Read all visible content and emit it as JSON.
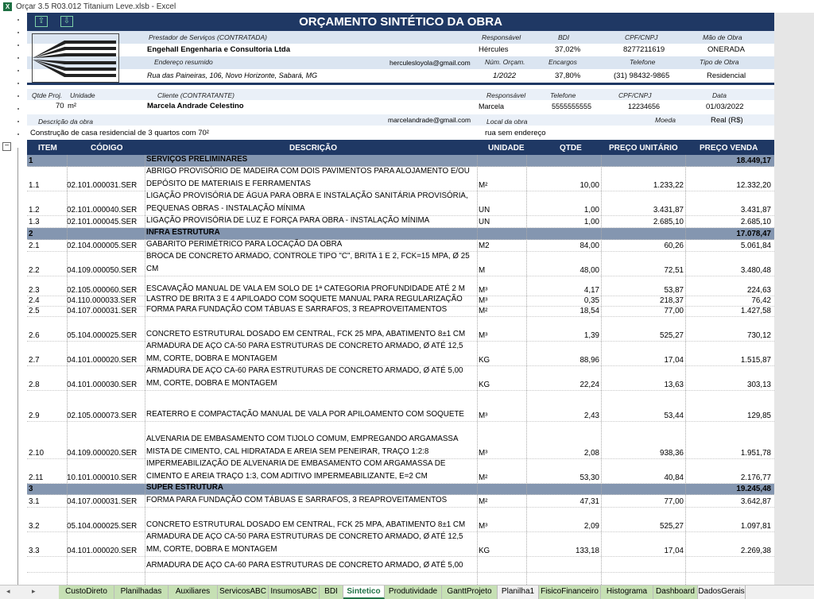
{
  "window": {
    "title": "Orçar 3.5 R03.012 Titanium Leve.xlsb - Excel"
  },
  "header": {
    "title": "ORÇAMENTO SINTÉTICO DA OBRA",
    "prestador_label": "Prestador de Serviços (CONTRATADA)",
    "prestador": "Engehall Engenharia e Consultoria Ltda",
    "responsavel_label": "Responsável",
    "responsavel": "Hércules",
    "bdi_label": "BDI",
    "bdi": "37,02%",
    "cpf_label": "CPF/CNPJ",
    "cpf": "8277211619",
    "mao_label": "Mão de Obra",
    "mao": "ONERADA",
    "endereco_label": "Endereço resumido",
    "email": "herculesloyola@gmail.com",
    "num_label": "Núm. Orçam.",
    "num": "1/2022",
    "encargos_label": "Encargos",
    "encargos": "37,80%",
    "telefone_label": "Telefone",
    "telefone": "(31) 98432-9865",
    "tipo_label": "Tipo de Obra",
    "tipo": "Residencial",
    "endereco": "Rua das Paineiras, 106, Novo Horizonte, Sabará, MG"
  },
  "client": {
    "qtde_label": "Qtde Proj.",
    "qtde": "70",
    "unidade_label": "Unidade",
    "unidade": "m²",
    "cliente_label": "Cliente (CONTRATANTE)",
    "cliente": "Marcela Andrade Celestino",
    "resp_label": "Responsável",
    "resp": "Marcela",
    "tel_label": "Telefone",
    "tel": "5555555555",
    "cpf_label": "CPF/CNPJ",
    "cpf": "12234656",
    "data_label": "Data",
    "data": "01/03/2022",
    "descricao_label": "Descrição da obra",
    "email": "marcelandrade@gmail.com",
    "local_label": "Local da obra",
    "moeda_label": "Moeda",
    "moeda": "Real (R$)",
    "descricao": "Construção de casa residencial de 3 quartos com 70²",
    "local": "rua sem endereço"
  },
  "table": {
    "headers": {
      "item": "ITEM",
      "codigo": "CÓDIGO",
      "descricao": "DESCRIÇÃO",
      "unidade": "UNIDADE",
      "qtde": "QTDE",
      "preco_unit": "PREÇO UNITÁRIO",
      "preco_venda": "PREÇO VENDA"
    },
    "rows": [
      {
        "item": "1",
        "codigo": "",
        "desc": "SERVIÇOS PRELIMINARES",
        "un": "",
        "qtde": "",
        "unit": "",
        "venda": "18.449,17",
        "group": true,
        "h": 15
      },
      {
        "item": "1.1",
        "codigo": "02.101.000031.SER",
        "desc": "ABRIGO PROVISÓRIO DE MADEIRA COM DOIS PAVIMENTOS PARA ALOJAMENTO E/OU DEPÓSITO DE MATERIAIS E FERRAMENTAS",
        "un": "M²",
        "qtde": "10,00",
        "unit": "1.233,22",
        "venda": "12.332,20",
        "h": 31
      },
      {
        "item": "1.2",
        "codigo": "02.101.000040.SER",
        "desc": "LIGAÇÃO PROVISÓRIA DE ÁGUA PARA OBRA E INSTALAÇÃO SANITÁRIA PROVISÓRIA, PEQUENAS OBRAS - INSTALAÇÃO MÍNIMA",
        "un": "UN",
        "qtde": "1,00",
        "unit": "3.431,87",
        "venda": "3.431,87",
        "h": 31
      },
      {
        "item": "1.3",
        "codigo": "02.101.000045.SER",
        "desc": "LIGAÇÃO PROVISÓRIA DE LUZ E FORÇA PARA OBRA - INSTALAÇÃO MÍNIMA",
        "un": "UN",
        "qtde": "1,00",
        "unit": "2.685,10",
        "venda": "2.685,10",
        "h": 15
      },
      {
        "item": "2",
        "codigo": "",
        "desc": "INFRA ESTRUTURA",
        "un": "",
        "qtde": "",
        "unit": "",
        "venda": "17.078,47",
        "group": true,
        "h": 15
      },
      {
        "item": "2.1",
        "codigo": "02.104.000005.SER",
        "desc": "GABARITO PERIMÉTRICO PARA LOCAÇÃO DA OBRA",
        "un": "M2",
        "qtde": "84,00",
        "unit": "60,26",
        "venda": "5.061,84",
        "h": 15
      },
      {
        "item": "2.2",
        "codigo": "04.109.000050.SER",
        "desc": "BROCA DE CONCRETO ARMADO, CONTROLE TIPO \"C\", BRITA 1 E 2, FCK=15 MPA, Ø 25 CM",
        "un": "M",
        "qtde": "48,00",
        "unit": "72,51",
        "venda": "3.480,48",
        "h": 31
      },
      {
        "item": "2.3",
        "codigo": "02.105.000060.SER",
        "desc": "ESCAVAÇÃO MANUAL DE VALA EM SOLO DE 1ª CATEGORIA PROFUNDIDADE ATÉ 2 M",
        "un": "M³",
        "qtde": "4,17",
        "unit": "53,87",
        "venda": "224,63",
        "h": 25
      },
      {
        "item": "2.4",
        "codigo": "04.110.000033.SER",
        "desc": "LASTRO DE BRITA 3 E 4 APILOADO COM SOQUETE MANUAL PARA REGULARIZAÇÃO",
        "un": "M³",
        "qtde": "0,35",
        "unit": "218,37",
        "venda": "76,42",
        "h": 13
      },
      {
        "item": "2.5",
        "codigo": "04.107.000031.SER",
        "desc": "FORMA PARA FUNDAÇÃO COM TÁBUAS E SARRAFOS, 3 REAPROVEITAMENTOS",
        "un": "M²",
        "qtde": "18,54",
        "unit": "77,00",
        "venda": "1.427,58",
        "h": 13
      },
      {
        "item": "2.6",
        "codigo": "05.104.000025.SER",
        "desc": "CONCRETO ESTRUTURAL DOSADO EM CENTRAL, FCK 25 MPA, ABATIMENTO 8±1 CM",
        "un": "M³",
        "qtde": "1,39",
        "unit": "525,27",
        "venda": "730,12",
        "h": 31
      },
      {
        "item": "2.7",
        "codigo": "04.101.000020.SER",
        "desc": "ARMADURA DE AÇO CA-50 PARA ESTRUTURAS DE CONCRETO ARMADO, Ø ATÉ 12,5 MM, CORTE, DOBRA E MONTAGEM",
        "un": "KG",
        "qtde": "88,96",
        "unit": "17,04",
        "venda": "1.515,87",
        "h": 31
      },
      {
        "item": "2.8",
        "codigo": "04.101.000030.SER",
        "desc": "ARMADURA DE AÇO CA-60 PARA ESTRUTURAS DE CONCRETO ARMADO, Ø ATÉ 5,00 MM, CORTE, DOBRA E MONTAGEM",
        "un": "KG",
        "qtde": "22,24",
        "unit": "13,63",
        "venda": "303,13",
        "h": 31
      },
      {
        "item": "2.9",
        "codigo": "02.105.000073.SER",
        "desc": "REATERRO E COMPACTAÇÃO MANUAL DE VALA POR APILOAMENTO COM SOQUETE",
        "un": "M³",
        "qtde": "2,43",
        "unit": "53,44",
        "venda": "129,85",
        "h": 39
      },
      {
        "item": "2.10",
        "codigo": "04.109.000020.SER",
        "desc": "ALVENARIA DE EMBASAMENTO COM TIJOLO COMUM, EMPREGANDO ARGAMASSA MISTA DE CIMENTO, CAL HIDRATADA E AREIA SEM PENEIRAR, TRAÇO 1:2:8",
        "un": "M³",
        "qtde": "2,08",
        "unit": "938,36",
        "venda": "1.951,78",
        "h": 47
      },
      {
        "item": "2.11",
        "codigo": "10.101.000010.SER",
        "desc": "IMPERMEABILIZAÇÃO DE ALVENARIA DE EMBASAMENTO COM ARGAMASSA DE CIMENTO E AREIA TRAÇO 1:3, COM ADITIVO IMPERMEABILIZANTE, E=2 CM",
        "un": "M²",
        "qtde": "53,30",
        "unit": "40,84",
        "venda": "2.176,77",
        "h": 31
      },
      {
        "item": "3",
        "codigo": "",
        "desc": "SUPER ESTRUTURA",
        "un": "",
        "qtde": "",
        "unit": "",
        "venda": "19.245,48",
        "group": true,
        "h": 14
      },
      {
        "item": "3.1",
        "codigo": "04.107.000031.SER",
        "desc": "FORMA PARA FUNDAÇÃO COM TÁBUAS E SARRAFOS, 3 REAPROVEITAMENTOS",
        "un": "M²",
        "qtde": "47,31",
        "unit": "77,00",
        "venda": "3.642,87",
        "h": 16
      },
      {
        "item": "3.2",
        "codigo": "05.104.000025.SER",
        "desc": "CONCRETO ESTRUTURAL DOSADO EM CENTRAL, FCK 25 MPA, ABATIMENTO 8±1 CM",
        "un": "M³",
        "qtde": "2,09",
        "unit": "525,27",
        "venda": "1.097,81",
        "h": 31
      },
      {
        "item": "3.3",
        "codigo": "04.101.000020.SER",
        "desc": "ARMADURA DE AÇO CA-50 PARA ESTRUTURAS DE CONCRETO ARMADO, Ø ATÉ 12,5 MM, CORTE, DOBRA E MONTAGEM",
        "un": "KG",
        "qtde": "133,18",
        "unit": "17,04",
        "venda": "2.269,38",
        "h": 31
      },
      {
        "item": "",
        "codigo": "",
        "desc": "ARMADURA DE AÇO CA-60 PARA ESTRUTURAS DE CONCRETO ARMADO, Ø ATÉ 5,00",
        "un": "",
        "qtde": "",
        "unit": "",
        "venda": "",
        "h": 20
      }
    ]
  },
  "sheet_tabs": [
    {
      "label": "CustoDireto",
      "color": "green"
    },
    {
      "label": "Planilhadas",
      "color": "green"
    },
    {
      "label": "Auxiliares",
      "color": "green"
    },
    {
      "label": "ServicosABC",
      "color": "green"
    },
    {
      "label": "InsumosABC",
      "color": "green"
    },
    {
      "label": "BDI",
      "color": "green"
    },
    {
      "label": "Sintetico",
      "color": "active"
    },
    {
      "label": "Produtividade",
      "color": "green"
    },
    {
      "label": "GanttProjeto",
      "color": "green"
    },
    {
      "label": "Planilha1",
      "color": "plain"
    },
    {
      "label": "FisicoFinanceiro",
      "color": "green"
    },
    {
      "label": "Histograma",
      "color": "green"
    },
    {
      "label": "Dashboard",
      "color": "green"
    },
    {
      "label": "DadosGerais",
      "color": "plain"
    }
  ]
}
